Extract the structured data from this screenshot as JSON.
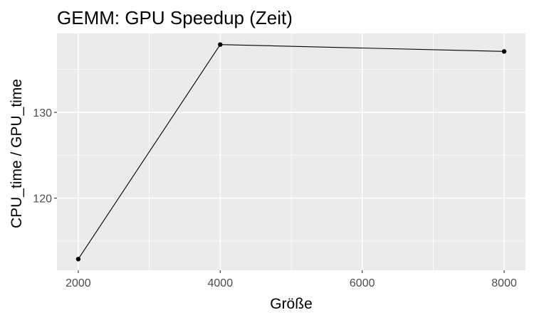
{
  "chart_data": {
    "type": "line",
    "title": "GEMM: GPU Speedup (Zeit)",
    "xlabel": "Größe",
    "ylabel": "CPU_time / GPU_time",
    "x": [
      2000,
      4000,
      8000
    ],
    "series": [
      {
        "values": [
          112.9,
          137.9,
          137.1
        ]
      }
    ],
    "xlim": [
      1700,
      8300
    ],
    "ylim": [
      111.6,
      139.2
    ],
    "xticks": [
      2000,
      4000,
      6000,
      8000
    ],
    "yticks": [
      120,
      130
    ],
    "grid": true,
    "legend": "none",
    "colors": {
      "panel": "#ebebeb",
      "grid": "#ffffff",
      "line": "#000000",
      "point": "#000000",
      "tick_text": "#4d4d4d"
    }
  }
}
